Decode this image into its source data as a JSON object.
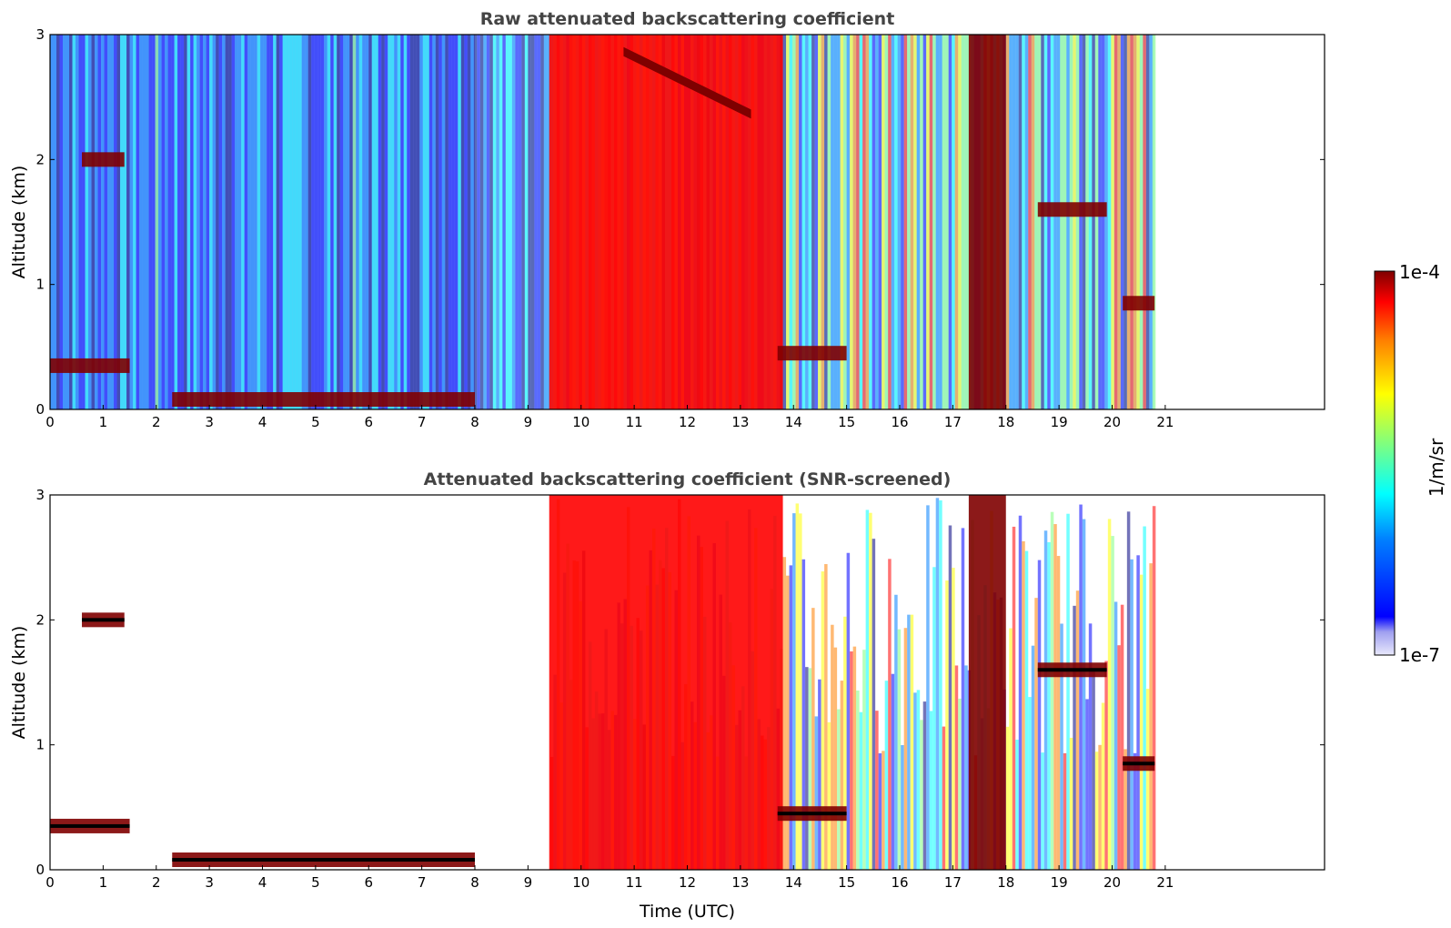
{
  "colors": {
    "jet": [
      "#00007f",
      "#0000ff",
      "#007fff",
      "#00ffff",
      "#7fff7f",
      "#ffff00",
      "#ff7f00",
      "#ff0000",
      "#7f0000"
    ],
    "very_low": "#c8c8f5",
    "saturated": "#000000",
    "title": "#444444"
  },
  "colorbar": {
    "min_label": "1e-7",
    "max_label": "1e-4",
    "unit_label": "1/m/sr",
    "scale": "log",
    "range": [
      1e-07,
      0.0001
    ]
  },
  "chart_data": [
    {
      "type": "heatmap",
      "title": "Raw attenuated backscattering coefficient",
      "xlabel": "",
      "ylabel": "Altitude (km)",
      "xlim": [
        0,
        24
      ],
      "ylim": [
        0,
        3
      ],
      "x_ticks": [
        "0",
        "1",
        "2",
        "3",
        "4",
        "5",
        "6",
        "7",
        "8",
        "9",
        "10",
        "11",
        "12",
        "13",
        "14",
        "15",
        "16",
        "17",
        "18",
        "19",
        "20",
        "21"
      ],
      "y_ticks": [
        "0",
        "1",
        "2",
        "3"
      ],
      "data_end_time": 20.8,
      "screened": false,
      "features": [
        {
          "feature": "surface layer",
          "time_range": [
            2.3,
            8.0
          ],
          "altitude_km": 0.08,
          "value": 0.0001
        },
        {
          "feature": "boundary layer top",
          "time_range": [
            0,
            1.5
          ],
          "altitude_km": 0.35,
          "value": 0.0001
        },
        {
          "feature": "elevated aerosol layer",
          "time_range": [
            0.6,
            1.4
          ],
          "altitude_km": 2.0,
          "value": 0.0001
        },
        {
          "feature": "precipitation",
          "time_range": [
            9.4,
            13.8
          ],
          "altitude_km": [
            0,
            3
          ],
          "value": 5e-05
        },
        {
          "feature": "descending cloud base",
          "time_range": [
            10.8,
            13.2
          ],
          "altitude_km": [
            2.9,
            2.4
          ],
          "value": 0.0001
        },
        {
          "feature": "low cloud",
          "time_range": [
            13.7,
            15.0
          ],
          "altitude_km": 0.45,
          "value": 0.0001
        },
        {
          "feature": "precipitation",
          "time_range": [
            17.3,
            18.0
          ],
          "altitude_km": [
            0,
            3
          ],
          "value": 0.0001
        },
        {
          "feature": "cloud layer",
          "time_range": [
            18.6,
            19.9
          ],
          "altitude_km": 1.6,
          "value": 0.0001
        },
        {
          "feature": "evening boundary layer",
          "time_range": [
            20.2,
            20.8
          ],
          "altitude_km": 0.85,
          "value": 0.0001
        }
      ]
    },
    {
      "type": "heatmap",
      "title": "Attenuated backscattering coefficient (SNR-screened)",
      "xlabel": "Time (UTC)",
      "ylabel": "Altitude (km)",
      "xlim": [
        0,
        24
      ],
      "ylim": [
        0,
        3
      ],
      "x_ticks": [
        "0",
        "1",
        "2",
        "3",
        "4",
        "5",
        "6",
        "7",
        "8",
        "9",
        "10",
        "11",
        "12",
        "13",
        "14",
        "15",
        "16",
        "17",
        "18",
        "19",
        "20",
        "21"
      ],
      "y_ticks": [
        "0",
        "1",
        "2",
        "3"
      ],
      "data_end_time": 20.8,
      "screened": true,
      "features": [
        {
          "feature": "surface layer",
          "time_range": [
            2.3,
            8.0
          ],
          "altitude_km": 0.08,
          "value": 0.0001
        },
        {
          "feature": "boundary layer top",
          "time_range": [
            0,
            1.5
          ],
          "altitude_km": 0.35,
          "value": 0.0001
        },
        {
          "feature": "elevated aerosol layer",
          "time_range": [
            0.6,
            1.4
          ],
          "altitude_km": 2.0,
          "value": 0.0001
        },
        {
          "feature": "precipitation",
          "time_range": [
            9.4,
            13.8
          ],
          "altitude_km": [
            0,
            3
          ],
          "value": 5e-05
        },
        {
          "feature": "low cloud",
          "time_range": [
            13.7,
            15.0
          ],
          "altitude_km": 0.45,
          "value": 0.0001
        },
        {
          "feature": "precipitation",
          "time_range": [
            17.3,
            18.0
          ],
          "altitude_km": [
            0,
            3
          ],
          "value": 0.0001
        },
        {
          "feature": "cloud layer",
          "time_range": [
            18.6,
            19.9
          ],
          "altitude_km": 1.6,
          "value": 0.0001
        },
        {
          "feature": "evening boundary layer",
          "time_range": [
            20.2,
            20.8
          ],
          "altitude_km": 0.85,
          "value": 0.0001
        }
      ]
    }
  ]
}
